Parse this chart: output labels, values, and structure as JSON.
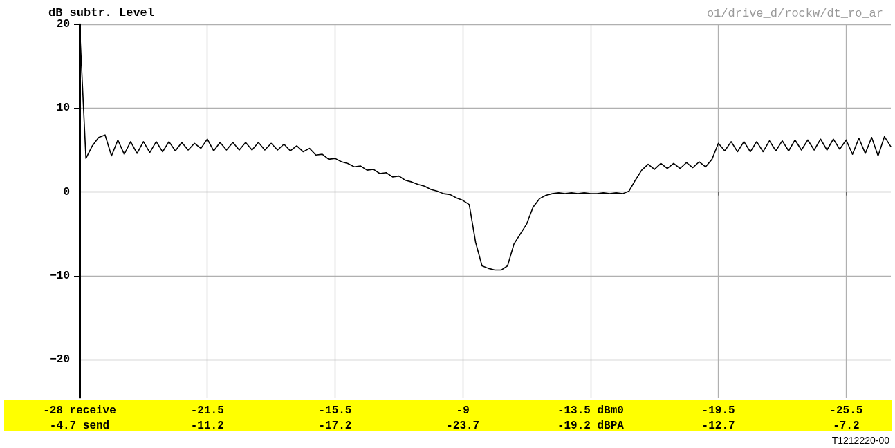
{
  "chart_data": {
    "type": "line",
    "ylabel": "dB subtr. Level",
    "subtitle": "o1/drive_d/rockw/dt_ro_ar",
    "annotations": [
      "T1212220-00"
    ],
    "categories": [
      "-28 receive\n-4.7 send",
      null,
      null,
      null,
      null,
      null,
      null,
      null,
      null,
      null,
      null,
      null,
      null,
      null,
      null,
      null,
      null,
      null,
      null,
      null,
      "-21.5\n-11.2",
      null,
      null,
      null,
      null,
      null,
      null,
      null,
      null,
      null,
      null,
      null,
      null,
      null,
      null,
      null,
      null,
      null,
      null,
      null,
      "-15.5\n-17.2",
      null,
      null,
      null,
      null,
      null,
      null,
      null,
      null,
      null,
      null,
      null,
      null,
      null,
      null,
      null,
      null,
      null,
      null,
      null,
      "-9\n-23.7",
      null,
      null,
      null,
      null,
      null,
      null,
      null,
      null,
      null,
      null,
      null,
      null,
      null,
      null,
      null,
      null,
      null,
      null,
      null,
      "-13.5 dBm0\n-19.2 dBPA",
      null,
      null,
      null,
      null,
      null,
      null,
      null,
      null,
      null,
      null,
      null,
      null,
      null,
      null,
      null,
      null,
      null,
      null,
      null,
      "-19.5\n-12.7",
      null,
      null,
      null,
      null,
      null,
      null,
      null,
      null,
      null,
      null,
      null,
      null,
      null,
      null,
      null,
      null,
      null,
      null,
      null,
      "-25.5\n-7.2",
      null,
      null,
      null,
      null,
      null,
      null,
      null
    ],
    "series": [
      {
        "color": "#000000",
        "values": [
          20,
          4,
          5.5,
          6.5,
          6.8,
          4.3,
          6.2,
          4.5,
          6,
          4.6,
          6,
          4.7,
          6,
          4.8,
          6,
          4.9,
          5.9,
          5,
          5.8,
          5.2,
          6.3,
          4.9,
          5.9,
          5,
          5.9,
          5,
          5.9,
          5,
          5.9,
          5,
          5.8,
          5,
          5.7,
          4.9,
          5.5,
          4.8,
          5.2,
          4.4,
          4.5,
          3.9,
          4,
          3.6,
          3.4,
          3,
          3.1,
          2.6,
          2.7,
          2.2,
          2.3,
          1.8,
          1.9,
          1.4,
          1.2,
          0.9,
          0.7,
          0.3,
          0.1,
          -0.2,
          -0.3,
          -0.7,
          -1,
          -1.5,
          -6,
          -8.8,
          -9.1,
          -9.3,
          -9.3,
          -8.8,
          -6.2,
          -5,
          -3.8,
          -1.8,
          -0.8,
          -0.4,
          -0.2,
          -0.1,
          -0.2,
          -0.1,
          -0.2,
          -0.1,
          -0.2,
          -0.2,
          -0.1,
          -0.2,
          -0.1,
          -0.2,
          0.1,
          1.4,
          2.6,
          3.3,
          2.7,
          3.4,
          2.8,
          3.4,
          2.8,
          3.5,
          2.9,
          3.6,
          3,
          3.9,
          5.8,
          4.9,
          6,
          4.8,
          6,
          4.8,
          6,
          4.8,
          6.1,
          4.9,
          6.1,
          4.9,
          6.2,
          5,
          6.2,
          5,
          6.3,
          5,
          6.3,
          5.1,
          6.2,
          4.5,
          6.4,
          4.6,
          6.5,
          4.3,
          6.6,
          5.4
        ]
      }
    ],
    "ylim": [
      -24.5,
      20
    ],
    "yticks": [
      -20,
      -10,
      0,
      10,
      20
    ],
    "grid": true,
    "marker": "none",
    "line_style": "solid"
  }
}
